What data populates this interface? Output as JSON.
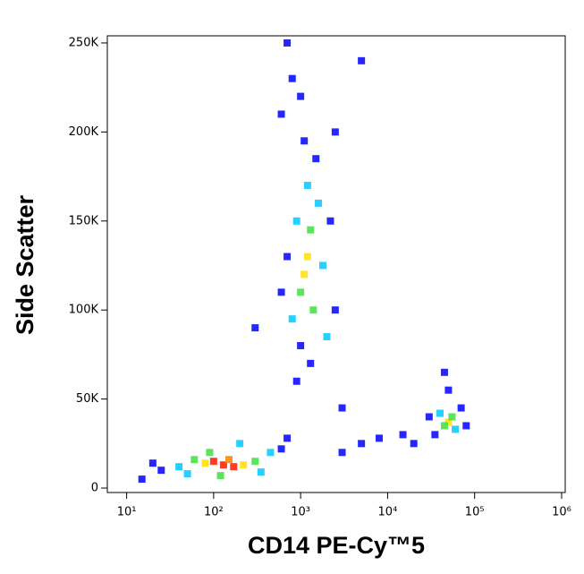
{
  "chart_data": {
    "type": "scatter",
    "x_label": "CD14 PE-Cy™5",
    "y_label": "Side Scatter",
    "xscale": "log",
    "xlim": [
      6,
      1100000
    ],
    "ylim": [
      -2500,
      254000
    ],
    "xticks": [
      {
        "value": 10,
        "label": "10¹"
      },
      {
        "value": 100,
        "label": "10²"
      },
      {
        "value": 1000,
        "label": "10³"
      },
      {
        "value": 10000,
        "label": "10⁴"
      },
      {
        "value": 100000,
        "label": "10⁵"
      },
      {
        "value": 1000000,
        "label": "10⁶"
      }
    ],
    "yticks": [
      0,
      {
        "value": 50000,
        "label": "50K"
      },
      {
        "value": 100000,
        "label": "100K"
      },
      {
        "value": 150000,
        "label": "150K"
      },
      {
        "value": 200000,
        "label": "200K"
      },
      {
        "value": 250000,
        "label": "250K"
      }
    ],
    "x": [
      130,
      100,
      170,
      150,
      80,
      220,
      60,
      300,
      40,
      450,
      25,
      600,
      15,
      200,
      90,
      350,
      50,
      120,
      700,
      20,
      1200,
      1100,
      1300,
      1000,
      1400,
      900,
      1600,
      1200,
      800,
      1800,
      700,
      2200,
      1000,
      1500,
      600,
      2500,
      1300,
      1100,
      900,
      2000,
      700,
      800,
      600,
      1000,
      2500,
      5000,
      300,
      3000,
      50000,
      55000,
      45000,
      60000,
      40000,
      70000,
      35000,
      50000,
      80000,
      30000,
      45000,
      5000,
      8000,
      15000,
      3000,
      20000
    ],
    "y": [
      13000,
      15000,
      12000,
      16000,
      14000,
      13000,
      16000,
      15000,
      12000,
      20000,
      10000,
      22000,
      5000,
      25000,
      20000,
      9000,
      8000,
      7000,
      28000,
      14000,
      130000,
      120000,
      145000,
      110000,
      100000,
      150000,
      160000,
      170000,
      95000,
      125000,
      130000,
      150000,
      80000,
      185000,
      110000,
      100000,
      70000,
      195000,
      60000,
      85000,
      250000,
      230000,
      210000,
      220000,
      200000,
      240000,
      90000,
      45000,
      37000,
      40000,
      35000,
      33000,
      42000,
      45000,
      30000,
      55000,
      35000,
      40000,
      65000,
      25000,
      28000,
      30000,
      20000,
      25000
    ],
    "colors": [
      "#ff1a00",
      "#ff1a00",
      "#ff1a00",
      "#ff8000",
      "#ffe000",
      "#ffe000",
      "#40e040",
      "#40e040",
      "#00c8ff",
      "#00c8ff",
      "#0000ff",
      "#0000ff",
      "#0000ff",
      "#00c8ff",
      "#40e040",
      "#00c8ff",
      "#00c8ff",
      "#40e040",
      "#0000ff",
      "#0000ff",
      "#ffe000",
      "#ffe000",
      "#40e040",
      "#40e040",
      "#40e040",
      "#00c8ff",
      "#00c8ff",
      "#00c8ff",
      "#00c8ff",
      "#00c8ff",
      "#0000ff",
      "#0000ff",
      "#0000ff",
      "#0000ff",
      "#0000ff",
      "#0000ff",
      "#0000ff",
      "#0000ff",
      "#0000ff",
      "#00c8ff",
      "#0000ff",
      "#0000ff",
      "#0000ff",
      "#0000ff",
      "#0000ff",
      "#0000ff",
      "#0000ff",
      "#0000ff",
      "#ffe000",
      "#40e040",
      "#40e040",
      "#00c8ff",
      "#00c8ff",
      "#0000ff",
      "#0000ff",
      "#0000ff",
      "#0000ff",
      "#0000ff",
      "#0000ff",
      "#0000ff",
      "#0000ff",
      "#0000ff",
      "#0000ff",
      "#0000ff"
    ]
  }
}
